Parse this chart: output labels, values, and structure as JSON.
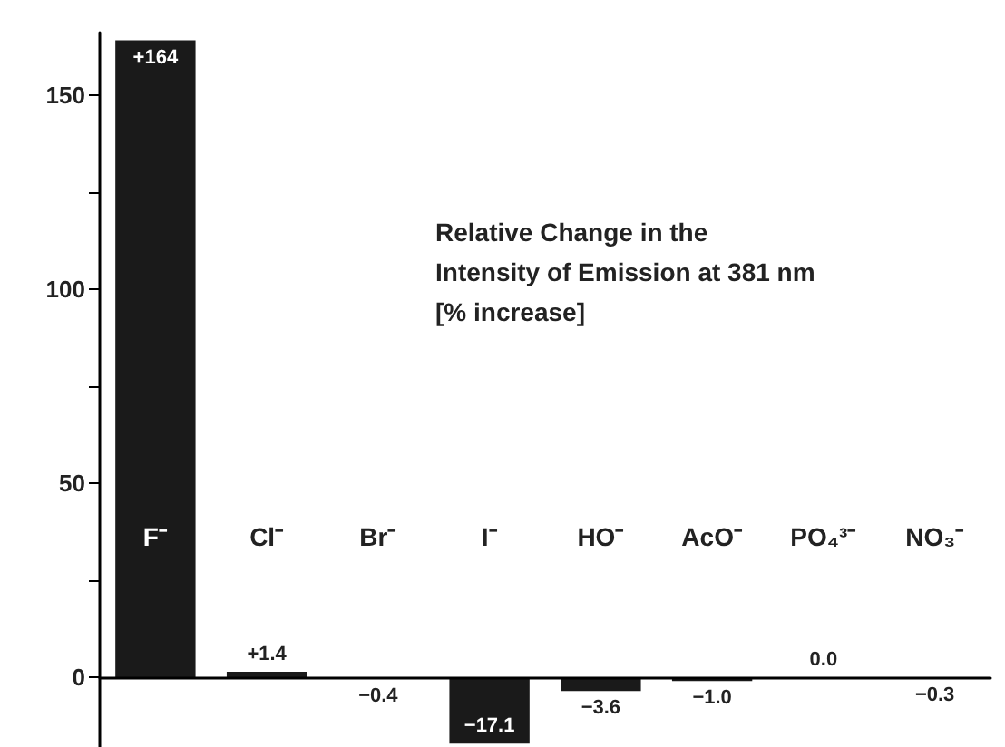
{
  "chart_data": {
    "type": "bar",
    "title": "Relative Change in the\nIntensity of Emission at 381 nm\n[% increase]",
    "categories": [
      "F⁻",
      "Cl⁻",
      "Br⁻",
      "I⁻",
      "HO⁻",
      "AcO⁻",
      "PO₄³⁻",
      "NO₃⁻"
    ],
    "values": [
      164,
      1.4,
      -0.4,
      -17.1,
      -3.6,
      -1.0,
      0.0,
      -0.3
    ],
    "value_labels": [
      "+164",
      "+1.4",
      "−0.4",
      "−17.1",
      "−3.6",
      "−1.0",
      "0.0",
      "−0.3"
    ],
    "color": "#1a1a1a",
    "ylim": [
      -18,
      166
    ],
    "yticks": [
      0,
      {
        "value": 25,
        "label": null
      },
      50,
      {
        "value": 75,
        "label": null
      },
      100,
      {
        "value": 125,
        "label": null
      },
      150
    ]
  }
}
